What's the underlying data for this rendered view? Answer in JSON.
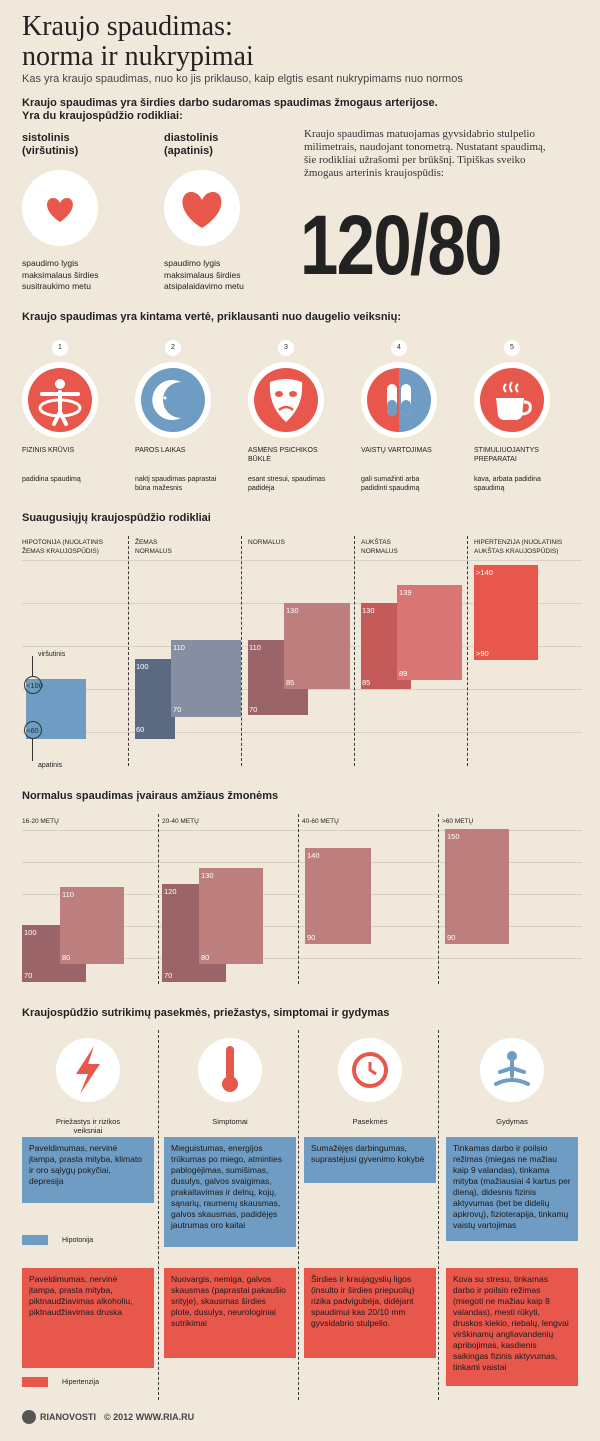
{
  "header": {
    "title_l1": "Kraujo spaudimas:",
    "title_l2": "norma ir nukrypimai",
    "subtitle": "Kas yra kraujo spaudimas, nuo ko jis priklauso, kaip elgtis esant nukrypimams nuo normos"
  },
  "intro": {
    "line1": "Kraujo spaudimas yra širdies darbo sudaromas spaudimas žmogaus arterijose.",
    "line2": "Yra du kraujospūdžio rodikliai:",
    "systolic": {
      "title1": "sistolinis",
      "title2": "(viršutinis)",
      "desc1": "spaudimo lygis",
      "desc2": "maksimalaus širdies",
      "desc3": "susitraukimo metu"
    },
    "diastolic": {
      "title1": "diastolinis",
      "title2": "(apatinis)",
      "desc1": "spaudimo lygis",
      "desc2": "maksimalaus širdies",
      "desc3": "atsipalaidavimo metu"
    },
    "text1": "Kraujo spaudimas matuojamas gyvsidabrio stulpelio",
    "text2": "milimetrais, naudojant tonometrą. Nustatant spaudimą,",
    "text3": "šie rodikliai užrašomi per brūkšnį. Tipiškas sveiko",
    "text4": "žmogaus arterinis kraujospūdis:",
    "big": "120/80"
  },
  "factors": {
    "heading": "Kraujo spaudimas yra kintama vertė, priklausanti nuo daugelio veiksnių:",
    "items": [
      {
        "n": "1",
        "label1": "FIZINIS KRŪVIS",
        "label2": "",
        "desc1": "padidina spaudimą",
        "desc2": "",
        "icon": "person-icon"
      },
      {
        "n": "2",
        "label1": "PAROS LAIKAS",
        "label2": "",
        "desc1": "naktį spaudimas paprastai",
        "desc2": "būna mažesnis",
        "icon": "moon-icon"
      },
      {
        "n": "3",
        "label1": "ASMENS PSICHIKOS",
        "label2": "BŪKLĖ",
        "desc1": "esant stresui, spaudimas",
        "desc2": "padidėja",
        "icon": "mask-icon"
      },
      {
        "n": "4",
        "label1": "VAISTŲ VARTOJIMAS",
        "label2": "",
        "desc1": "gali sumažinti arba",
        "desc2": "padidinti spaudimą",
        "icon": "pills-icon"
      },
      {
        "n": "5",
        "label1": "STIMULIUOJANTYS",
        "label2": "PREPARATAI",
        "desc1": "kava, arbata padidina",
        "desc2": "spaudimą",
        "icon": "coffee-icon"
      }
    ]
  },
  "adult": {
    "heading": "Suaugusiųjų kraujospūdžio rodikliai",
    "cols": [
      {
        "l1": "HIPOTONIJA (NUOLATINIS",
        "l2": "ŽEMAS KRAUJOSPŪDIS)",
        "sys": "<100",
        "dia": "<60"
      },
      {
        "l1": "ŽEMAS",
        "l2": "NORMALUS",
        "sys": "110",
        "dia": "70",
        "sys2": "100",
        "dia2": "60"
      },
      {
        "l1": "NORMALUS",
        "l2": "",
        "sys": "130",
        "dia": "85",
        "sys2": "110",
        "dia2": "70"
      },
      {
        "l1": "AUKŠTAS",
        "l2": "NORMALUS",
        "sys": "139",
        "dia": "89",
        "sys2": "130",
        "dia2": "85"
      },
      {
        "l1": "HIPERTENZIJA (NUOLATINIS",
        "l2": "AUKŠTAS KRAUJOSPŪDIS)",
        "sys": ">140",
        "dia": ">90"
      }
    ],
    "upper_label": "viršutinis",
    "lower_label": "apatinis"
  },
  "age": {
    "heading": "Normalus spaudimas įvairaus amžiaus žmonėms",
    "cols": [
      {
        "label": "16-20 METŲ",
        "sys": "110",
        "dia": "80",
        "sys2": "100",
        "dia2": "70"
      },
      {
        "label": "20-40 METŲ",
        "sys": "130",
        "dia": "80",
        "sys2": "120",
        "dia2": "70"
      },
      {
        "label": "40-60 METŲ",
        "sys": "140",
        "dia": "90"
      },
      {
        "label": ">60 METŲ",
        "sys": "150",
        "dia": "90"
      }
    ]
  },
  "consequences": {
    "heading": "Kraujospūdžio sutrikimų pasekmės, priežastys, simptomai ir gydymas",
    "cols": [
      {
        "l1": "Priežastys ir rizikos",
        "l2": "veiksniai"
      },
      {
        "l1": "Simptomai",
        "l2": ""
      },
      {
        "l1": "Pasekmės",
        "l2": ""
      },
      {
        "l1": "Gydymas",
        "l2": ""
      }
    ],
    "blue_cards": [
      "Paveldimumas, nervinė įtampa, prasta mityba, klimato ir oro sąlygų pokyčiai, depresija",
      "Mieguistumas, energijos trūkumas po miego, atminties pablogėjimas, sumišimas, dusulys, galvos svaigimas, prakaitavimas ir delnų, kojų, sąnarių, raumenų skausmas, galvos skausmas, padidėjęs jautrumas oro kaitai",
      "Sumažėjęs darbingumas, suprastėjusi gyvenimo kokybė",
      "Tinkamas darbo ir poilsio režimas (miegas ne mažiau kaip 9 valandas), tinkama mityba (mažiausiai 4 kartus per dieną), didesnis fizinis aktyvumas (bet be didelių apkrovų), fizioterapija, tinkamų vaistų vartojimas"
    ],
    "red_cards": [
      "Paveldimumas, nervinė įtampa, prasta mityba, piktnaudžiavimas alkoholiu, piktnaudžiavimas druska",
      "Nuovargis, nemiga, galvos skausmas (paprastai pakaušio srityje), skausmas širdies plote, dusulys, neurologiniai sutrikimai",
      "Širdies ir kraujagyslių ligos (insulto ir širdies priepuolių) rizika padvigubėja, didėjant spaudimui kas 20/10 mm gyvsidabrio stulpelio.",
      "Kova su stresu, tinkamas darbo ir poilsio režimas (miegoti ne mažiau kaip 8 valandas), mesti rūkyti, druskos kiekio, riebalų, lengvai virškinamų angliavandenių apribojimas, kasdienis saikingas fizinis aktyvumas, tinkami vaistai"
    ],
    "legend_blue": "Hipotonija",
    "legend_red": "Hipertenzija"
  },
  "footer": {
    "brand": "RIANOVOSTI",
    "copy": "© 2012 WWW.RIA.RU"
  },
  "colors": {
    "blue": "#6e9cc2",
    "red": "#e8574b",
    "bg": "#f1e8dc",
    "circle": "#ffffff"
  }
}
